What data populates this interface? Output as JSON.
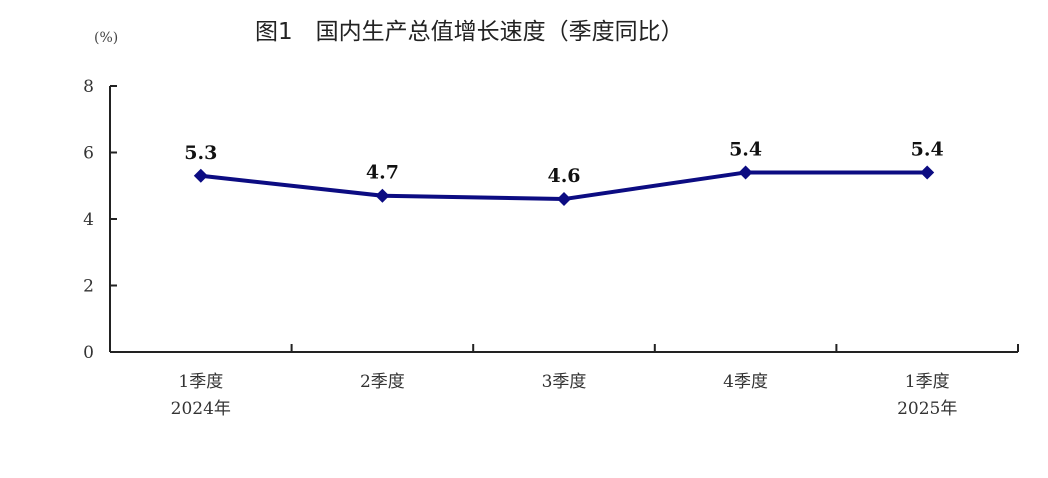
{
  "chart_data": {
    "type": "line",
    "title": "图1　国内生产总值增长速度（季度同比）",
    "ylabel": "(%)",
    "xlabel": "",
    "categories": [
      [
        "1季度",
        "2024年"
      ],
      [
        "2季度",
        ""
      ],
      [
        "3季度",
        ""
      ],
      [
        "4季度",
        ""
      ],
      [
        "1季度",
        "2025年"
      ]
    ],
    "series": [
      {
        "values": [
          5.3,
          4.7,
          4.6,
          5.4,
          5.4
        ]
      }
    ],
    "data_labels": [
      "5.3",
      "4.7",
      "4.6",
      "5.4",
      "5.4"
    ],
    "ylim": [
      0,
      8
    ],
    "yticks": [
      0,
      2,
      4,
      6,
      8
    ],
    "grid": false,
    "marker": "diamond",
    "colors": {
      "line": "#0c0c82",
      "axis": "#222222",
      "text": "#333333"
    }
  }
}
